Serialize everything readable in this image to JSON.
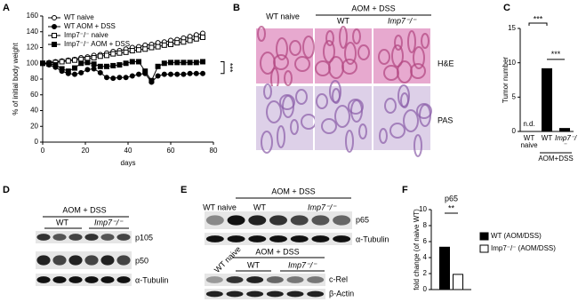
{
  "panel_labels": [
    "A",
    "B",
    "C",
    "D",
    "E",
    "F"
  ],
  "histology": {
    "header_left": "WT naive",
    "header_group": "AOM + DSS",
    "columns": [
      "WT",
      "Imp7⁻/⁻"
    ],
    "rows": [
      "H&E",
      "PAS"
    ]
  },
  "blot_d": {
    "group": "AOM + DSS",
    "columns": [
      "WT",
      "Imp7⁻/⁻"
    ],
    "bands": [
      "p105",
      "p50",
      "α-Tubulin"
    ]
  },
  "blot_e_top": {
    "control": "WT naive",
    "group": "AOM + DSS",
    "columns": [
      "WT",
      "Imp7⁻/⁻"
    ],
    "bands": [
      "p65",
      "α-Tubulin"
    ]
  },
  "blot_e_bottom": {
    "control": "WT naive",
    "group": "AOM + DSS",
    "columns": [
      "WT",
      "Imp7⁻/⁻"
    ],
    "bands": [
      "c-Rel",
      "β-Actin"
    ]
  },
  "chart_data": [
    {
      "type": "line",
      "xlabel": "days",
      "ylabel": "% of initial body weight",
      "x": [
        0,
        3,
        6,
        9,
        12,
        15,
        18,
        21,
        24,
        27,
        30,
        33,
        36,
        39,
        42,
        45,
        48,
        51,
        54,
        57,
        60,
        63,
        66,
        69,
        72,
        75
      ],
      "series": [
        {
          "name": "WT naive",
          "color": "#000000",
          "marker": "circle-open",
          "values": [
            100,
            101,
            102,
            103,
            104,
            105,
            107,
            108,
            110,
            111,
            113,
            115,
            116,
            118,
            120,
            121,
            123,
            124,
            126,
            127,
            129,
            130,
            132,
            134,
            136,
            138
          ]
        },
        {
          "name": "WT AOM + DSS",
          "color": "#000000",
          "marker": "circle",
          "values": [
            100,
            98,
            95,
            90,
            87,
            86,
            88,
            92,
            93,
            88,
            82,
            81,
            82,
            82,
            84,
            86,
            87,
            76,
            84,
            86,
            86,
            86,
            86,
            87,
            87,
            87
          ]
        },
        {
          "name": "Imp7⁻/⁻ naive",
          "color": "#000000",
          "marker": "square-open",
          "values": [
            100,
            100,
            101,
            102,
            103,
            104,
            105,
            106,
            107,
            109,
            110,
            112,
            113,
            114,
            116,
            117,
            118,
            120,
            121,
            123,
            124,
            126,
            127,
            129,
            131,
            133
          ]
        },
        {
          "name": "Imp7⁻/⁻ AOM + DSS",
          "color": "#000000",
          "marker": "square",
          "values": [
            100,
            99,
            98,
            93,
            90,
            94,
            100,
            101,
            99,
            96,
            96,
            97,
            98,
            100,
            102,
            102,
            90,
            78,
            96,
            100,
            101,
            101,
            101,
            101,
            101,
            102
          ]
        }
      ],
      "xlim": [
        0,
        80
      ],
      "xticks": [
        0,
        20,
        40,
        60,
        80
      ],
      "ylim": [
        0,
        160
      ],
      "yticks": [
        0,
        20,
        40,
        60,
        80,
        100,
        120,
        140,
        160
      ],
      "legend": "upper left",
      "annotations": [
        "***"
      ]
    },
    {
      "type": "bar",
      "ylabel": "Tumor number",
      "categories": [
        "WT naive",
        "WT",
        "Imp7⁻/⁻"
      ],
      "values": [
        0,
        9.2,
        0.5
      ],
      "color": "#000000",
      "ylim": [
        0,
        15
      ],
      "yticks": [
        0,
        5,
        10,
        15
      ],
      "group_label": "AOM+DSS",
      "annotations": [
        "n.d.",
        "***",
        "***"
      ]
    },
    {
      "type": "bar",
      "title": "p65",
      "ylabel": "fold change (of naive WT)",
      "series": [
        {
          "name": "WT (AOM/DSS)",
          "color": "#000000",
          "values": [
            5.3
          ]
        },
        {
          "name": "Imp7⁻/⁻ (AOM/DSS)",
          "color": "#ffffff",
          "values": [
            1.9
          ]
        }
      ],
      "ylim": [
        0,
        10
      ],
      "yticks": [
        0,
        2,
        4,
        6,
        8,
        10
      ],
      "annotations": [
        "**"
      ]
    }
  ]
}
